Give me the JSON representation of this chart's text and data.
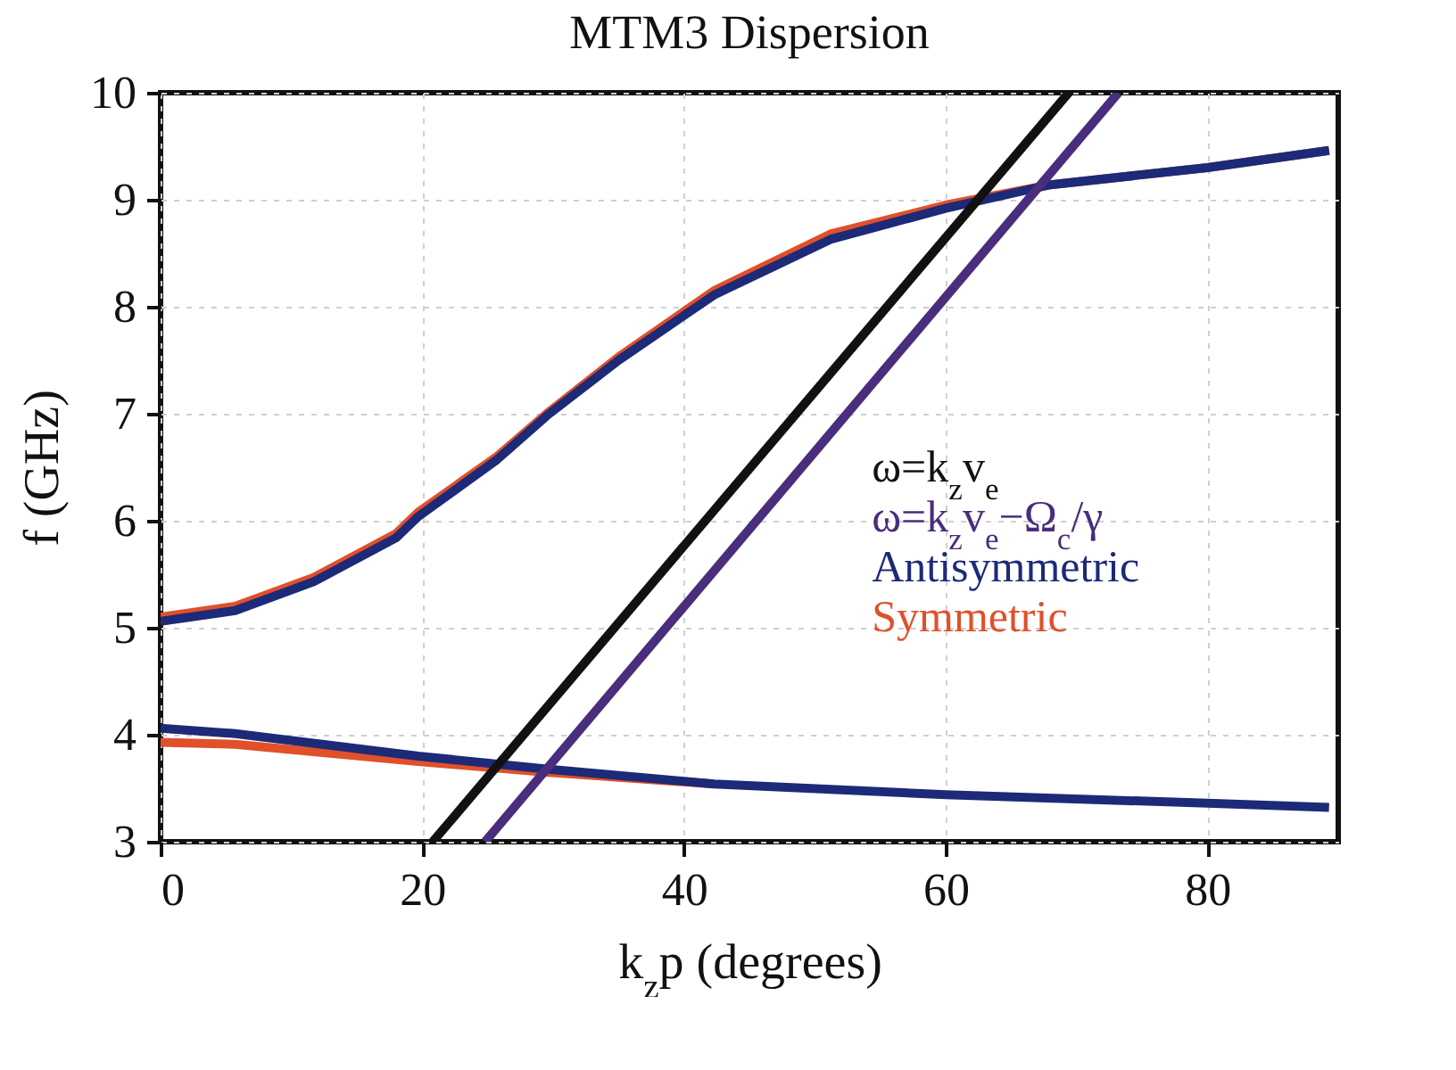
{
  "chart_data": {
    "type": "line",
    "title": "MTM3 Dispersion",
    "xlabel": "k$_{z}$p (degrees)",
    "ylabel": "f (GHz)",
    "xlim": [
      0,
      90
    ],
    "ylim": [
      3,
      10
    ],
    "xticks": [
      0,
      20,
      40,
      60,
      80
    ],
    "yticks": [
      3,
      4,
      5,
      6,
      7,
      8,
      9,
      10
    ],
    "grid": true,
    "legend": "right",
    "series": [
      {
        "name": "ω=k$_{z}$v$_{e}$",
        "color": "#111111",
        "x": [
          20.8,
          69.4
        ],
        "values": [
          3,
          10
        ]
      },
      {
        "name": "ω=k$_{z}$v$_{e}$−Ω$_{c}$/γ",
        "color": "#4a2d7c",
        "x": [
          24.8,
          73.2
        ],
        "values": [
          3,
          10
        ]
      },
      {
        "name": "Antisymmetric",
        "color": "#1c2a78",
        "x": [
          0,
          5.7,
          11.7,
          18,
          19.7,
          25.7,
          29.5,
          35,
          42.3,
          51.2,
          60,
          68,
          80,
          89.3
        ],
        "values": [
          5.06,
          5.16,
          5.43,
          5.84,
          6.04,
          6.57,
          6.98,
          7.5,
          8.11,
          8.63,
          8.92,
          9.14,
          9.3,
          9.46
        ]
      },
      {
        "color": "#1c2a78",
        "x": [
          0,
          5.7,
          19.7,
          29.5,
          42.3,
          60,
          80,
          89.3
        ],
        "values": [
          4.06,
          4.01,
          3.8,
          3.68,
          3.54,
          3.44,
          3.36,
          3.32
        ]
      },
      {
        "name": "Symmetric",
        "color": "#e0502a",
        "x": [
          0,
          5.7,
          11.7,
          18,
          19.7,
          25.7,
          29.5,
          35,
          42.3,
          51.2,
          60,
          68,
          80,
          89.3
        ],
        "values": [
          5.1,
          5.2,
          5.47,
          5.88,
          6.08,
          6.6,
          7.0,
          7.53,
          8.15,
          8.68,
          8.95,
          9.14,
          9.3,
          9.46
        ]
      },
      {
        "color": "#e0502a",
        "x": [
          0,
          5.7,
          19.7,
          29.5,
          42.3
        ],
        "values": [
          3.93,
          3.91,
          3.75,
          3.65,
          3.54
        ]
      }
    ]
  }
}
